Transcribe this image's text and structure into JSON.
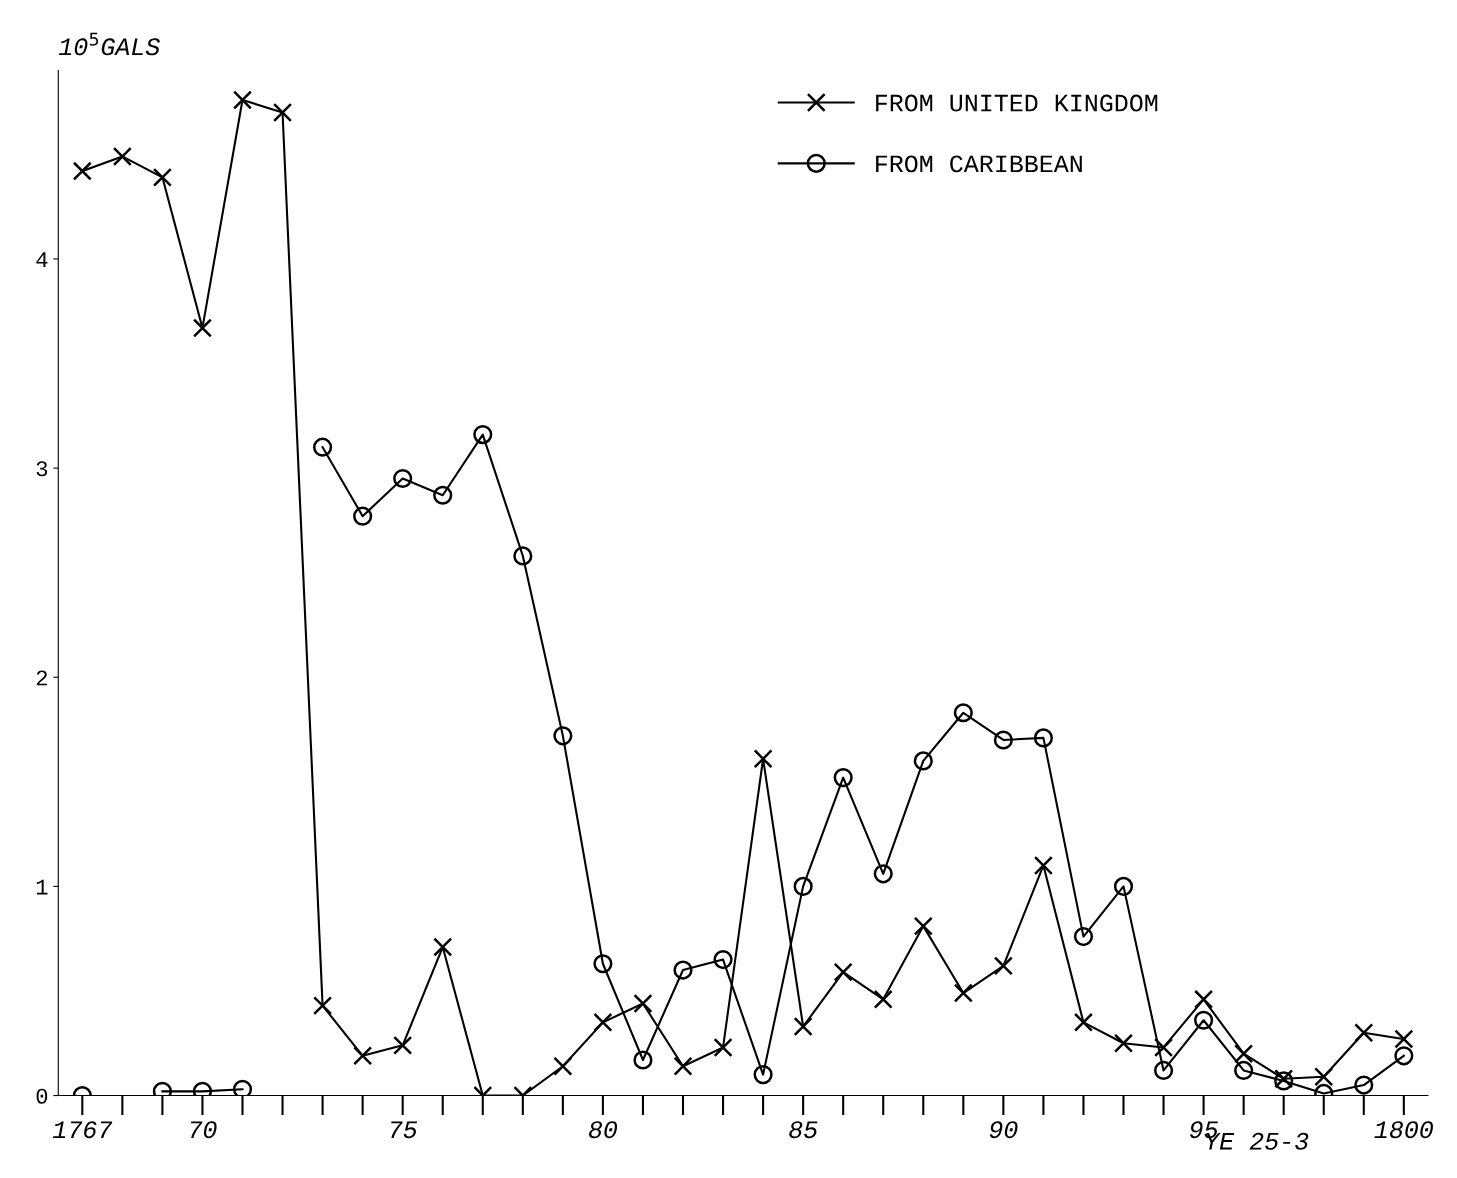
{
  "chart_data": {
    "type": "line",
    "ylabel": "10$^{5}$GALS",
    "categories": [
      "1767",
      null,
      null,
      "70",
      null,
      null,
      null,
      null,
      "75",
      null,
      null,
      null,
      null,
      "80",
      null,
      null,
      null,
      null,
      "85",
      null,
      null,
      null,
      null,
      "90",
      null,
      null,
      null,
      null,
      "95",
      null,
      null,
      null,
      null,
      "1800"
    ],
    "series": [
      {
        "name": "FROM UNITED KINGDOM",
        "color": "#000000",
        "marker": "cross",
        "values": [
          4.42,
          4.49,
          4.39,
          3.67,
          4.76,
          4.7,
          0.43,
          0.19,
          0.24,
          0.71,
          0.0,
          0.0,
          0.14,
          0.35,
          0.44,
          0.14,
          0.23,
          1.61,
          0.33,
          0.59,
          0.46,
          0.81,
          0.49,
          0.62,
          1.1,
          0.35,
          0.25,
          0.23,
          0.46,
          0.2,
          0.08,
          0.09,
          0.3,
          0.27
        ]
      },
      {
        "name": "FROM CARIBBEAN",
        "color": "#000000",
        "marker": "circle",
        "values": [
          0.0,
          null,
          0.02,
          0.02,
          0.03,
          null,
          3.1,
          2.77,
          2.95,
          2.87,
          3.16,
          2.58,
          1.72,
          0.63,
          0.17,
          0.6,
          0.65,
          0.1,
          1.0,
          1.52,
          1.06,
          1.6,
          1.83,
          1.7,
          1.71,
          0.76,
          1.0,
          0.12,
          0.36,
          0.12,
          0.07,
          0.01,
          0.05,
          0.19
        ]
      }
    ],
    "ylim": [
      0,
      4.9
    ],
    "yticks": [
      0,
      1,
      2,
      3,
      4
    ],
    "legend": "top right",
    "line_style": "solid",
    "grid": false,
    "annotations": [
      "YE 25-3"
    ]
  }
}
